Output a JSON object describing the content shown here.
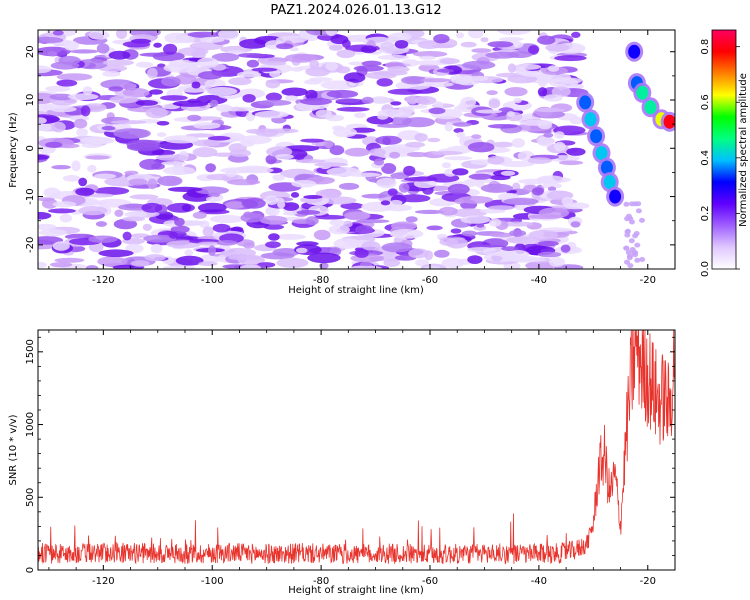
{
  "title": "PAZ1.2024.026.01.13.G12",
  "chart_data": [
    {
      "type": "heatmap",
      "title": "PAZ1.2024.026.01.13.G12",
      "xlabel": "Height of straight line (km)",
      "ylabel": "Frequency (Hz)",
      "xlim": [
        -132,
        -15
      ],
      "ylim": [
        -25,
        24.5
      ],
      "x_ticks": [
        -120,
        -100,
        -80,
        -60,
        -40,
        -20
      ],
      "y_ticks": [
        -20,
        -10,
        0,
        10,
        20
      ],
      "x_tick_labels": [
        "-120",
        "-100",
        "-80",
        "-60",
        "-40",
        "-20"
      ],
      "y_tick_labels": [
        "-20",
        "-10",
        "0",
        "10",
        "20"
      ],
      "colorbar": {
        "label": "Normalized spectral amplitude",
        "range": [
          0,
          0.86
        ],
        "ticks": [
          0.0,
          0.2,
          0.4,
          0.6,
          0.8
        ],
        "tick_labels": [
          "0.0",
          "0.2",
          "0.4",
          "0.6",
          "0.8"
        ],
        "colormap": [
          "#ffffff",
          "#e0c8ff",
          "#a060ff",
          "#6000ff",
          "#0000ff",
          "#00c0ff",
          "#00ff80",
          "#00ff00",
          "#ffff00",
          "#ff8000",
          "#ff0000",
          "#ff0060"
        ]
      },
      "features": [
        {
          "x": -31.5,
          "y": 9.5,
          "value": 0.35
        },
        {
          "x": -30.5,
          "y": 6.0,
          "value": 0.4
        },
        {
          "x": -29.5,
          "y": 2.5,
          "value": 0.35
        },
        {
          "x": -28.5,
          "y": -1.0,
          "value": 0.4
        },
        {
          "x": -27.5,
          "y": -4.0,
          "value": 0.35
        },
        {
          "x": -27.0,
          "y": -7.0,
          "value": 0.4
        },
        {
          "x": -26.0,
          "y": -10.0,
          "value": 0.3
        },
        {
          "x": -22.5,
          "y": 20.0,
          "value": 0.3
        },
        {
          "x": -22.0,
          "y": 13.5,
          "value": 0.35
        },
        {
          "x": -21.0,
          "y": 11.5,
          "value": 0.45
        },
        {
          "x": -19.5,
          "y": 8.5,
          "value": 0.45
        },
        {
          "x": -17.5,
          "y": 6.0,
          "value": 0.62
        },
        {
          "x": -16.0,
          "y": 5.5,
          "value": 0.8
        }
      ]
    },
    {
      "type": "line",
      "xlabel": "Height of straight line (km)",
      "ylabel": "SNR (10 * v/v)",
      "xlim": [
        -132,
        -15
      ],
      "ylim": [
        0,
        1650
      ],
      "x_ticks": [
        -120,
        -100,
        -80,
        -60,
        -40,
        -20
      ],
      "y_ticks": [
        0,
        500,
        1000,
        1500
      ],
      "x_tick_labels": [
        "-120",
        "-100",
        "-80",
        "-60",
        "-40",
        "-20"
      ],
      "y_tick_labels": [
        "0",
        "500",
        "1000",
        "1500"
      ],
      "color": "#e8322c",
      "x": [
        -132,
        -128,
        -124,
        -120,
        -116,
        -112,
        -108,
        -104,
        -100,
        -96,
        -92,
        -88,
        -84,
        -80,
        -76,
        -72,
        -68,
        -64,
        -60,
        -56,
        -52,
        -48,
        -44,
        -40,
        -36,
        -33,
        -31,
        -30,
        -29,
        -28,
        -27,
        -26,
        -25,
        -24,
        -23,
        -22,
        -21,
        -20,
        -19,
        -18,
        -17,
        -16,
        -15
      ],
      "y": [
        120,
        110,
        115,
        120,
        118,
        115,
        112,
        110,
        115,
        118,
        112,
        110,
        115,
        112,
        110,
        108,
        112,
        110,
        105,
        110,
        112,
        115,
        110,
        110,
        115,
        140,
        190,
        320,
        680,
        800,
        520,
        650,
        300,
        900,
        1350,
        1580,
        1400,
        1350,
        1250,
        1150,
        1200,
        1100,
        1500
      ]
    }
  ]
}
